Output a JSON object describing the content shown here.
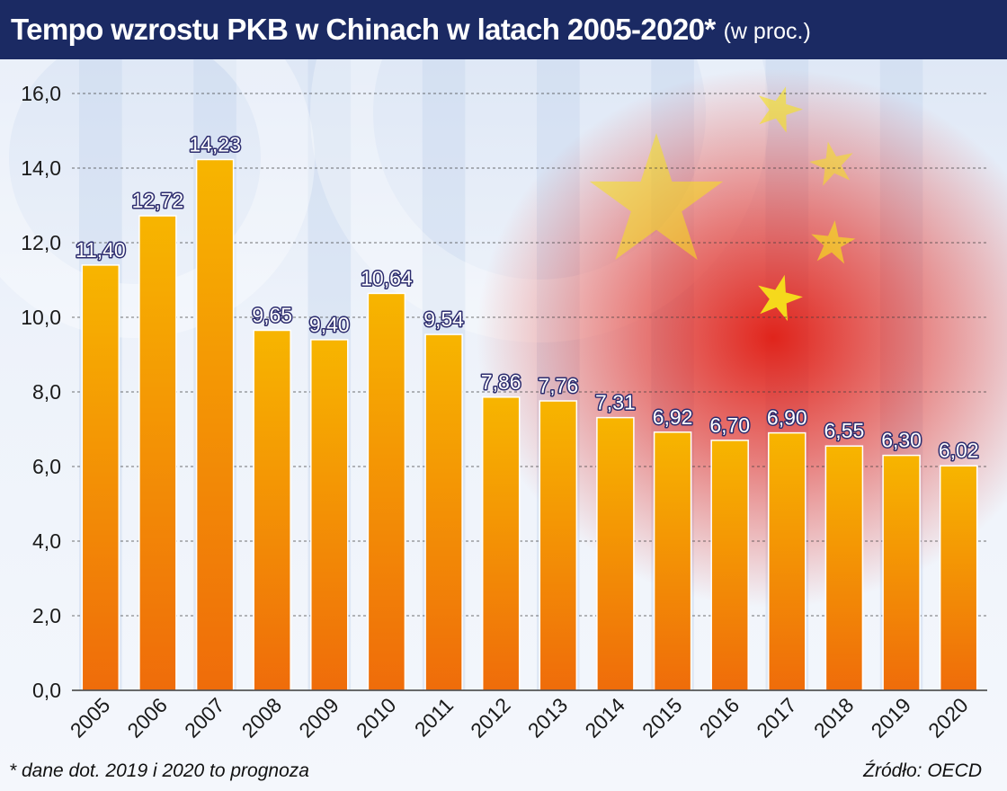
{
  "header": {
    "title": "Tempo wzrostu PKB w Chinach w latach 2005-2020*",
    "unit": "(w proc.)"
  },
  "footer": {
    "footnote": "* dane dot. 2019 i 2020 to prognoza",
    "source": "Źródło: OECD"
  },
  "colors": {
    "bar_top": "#f7b500",
    "bar_bottom": "#ef6c0a",
    "title_bg": "#1b2a63",
    "label_fill": "#ffffff",
    "label_stroke": "#2c2c6e",
    "flag_red": "#e01a10",
    "flag_star": "#f6e21a"
  },
  "chart_data": {
    "type": "bar",
    "categories": [
      "2005",
      "2006",
      "2007",
      "2008",
      "2009",
      "2010",
      "2011",
      "2012",
      "2013",
      "2014",
      "2015",
      "2016",
      "2017",
      "2018",
      "2019",
      "2020"
    ],
    "values": [
      11.4,
      12.72,
      14.23,
      9.65,
      9.4,
      10.64,
      9.54,
      7.86,
      7.76,
      7.31,
      6.92,
      6.7,
      6.9,
      6.55,
      6.3,
      6.02
    ],
    "value_labels": [
      "11,40",
      "12,72",
      "14,23",
      "9,65",
      "9,40",
      "10,64",
      "9,54",
      "7,86",
      "7,76",
      "7,31",
      "6,92",
      "6,70",
      "6,90",
      "6,55",
      "6,30",
      "6,02"
    ],
    "y_ticks": [
      0,
      2,
      4,
      6,
      8,
      10,
      12,
      14,
      16
    ],
    "y_tick_labels": [
      "0,0",
      "2,0",
      "4,0",
      "6,0",
      "8,0",
      "10,0",
      "12,0",
      "14,0",
      "16,0"
    ],
    "ylim": [
      0,
      16
    ],
    "grid": true,
    "grid_style": "dashed",
    "background": "chinese-flag-watermark"
  }
}
